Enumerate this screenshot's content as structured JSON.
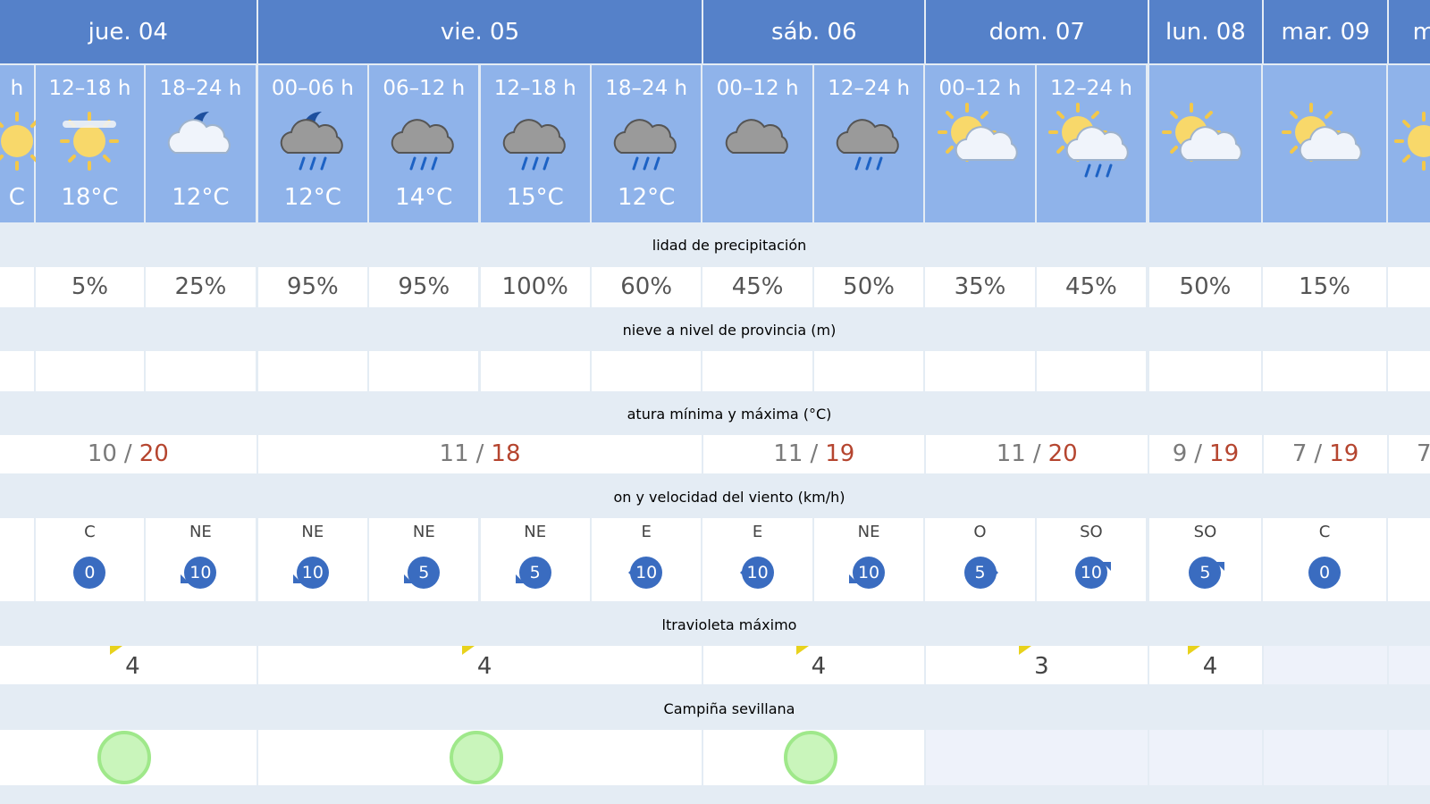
{
  "days": [
    "jue. 04",
    "vie. 05",
    "sáb. 06",
    "dom. 07",
    "lun. 08",
    "mar. 09",
    "m"
  ],
  "period_labels": [
    "h",
    "12–18 h",
    "18–24 h",
    "00–06 h",
    "06–12 h",
    "12–18 h",
    "18–24 h",
    "00–12 h",
    "12–24 h",
    "00–12 h",
    "12–24 h"
  ],
  "period_temps": [
    "C",
    "18°C",
    "12°C",
    "12°C",
    "14°C",
    "15°C",
    "12°C"
  ],
  "precipitation": {
    "label": "lidad de precipitación",
    "values": [
      "5%",
      "25%",
      "95%",
      "95%",
      "100%",
      "60%",
      "45%",
      "50%",
      "35%",
      "45%",
      "50%",
      "15%"
    ]
  },
  "snow": {
    "label": "nieve a nivel de provincia (m)"
  },
  "temperature": {
    "label": "atura mínima y máxima (°C)",
    "separator": "/",
    "days": [
      {
        "min": 10,
        "max": 20
      },
      {
        "min": 11,
        "max": 18
      },
      {
        "min": 11,
        "max": 19
      },
      {
        "min": 11,
        "max": 20
      },
      {
        "min": 9,
        "max": 19
      },
      {
        "min": 7,
        "max": 19
      },
      {
        "min": 7
      }
    ]
  },
  "wind": {
    "label": "on y velocidad del viento (km/h)",
    "values": [
      {
        "direction": "C",
        "speed": 0
      },
      {
        "direction": "NE",
        "speed": 10
      },
      {
        "direction": "NE",
        "speed": 10
      },
      {
        "direction": "NE",
        "speed": 5
      },
      {
        "direction": "NE",
        "speed": 5
      },
      {
        "direction": "E",
        "speed": 10
      },
      {
        "direction": "E",
        "speed": 10
      },
      {
        "direction": "NE",
        "speed": 10
      },
      {
        "direction": "O",
        "speed": 5
      },
      {
        "direction": "SO",
        "speed": 10
      },
      {
        "direction": "SO",
        "speed": 5
      },
      {
        "direction": "C",
        "speed": 0
      }
    ]
  },
  "uv": {
    "label": "ltravioleta máximo",
    "values": [
      4,
      4,
      4,
      3,
      4
    ]
  },
  "air_quality": {
    "label": "Campiña sevillana",
    "colors": [
      "#c9f5bb",
      "#c9f5bb",
      "#c9f5bb"
    ]
  }
}
